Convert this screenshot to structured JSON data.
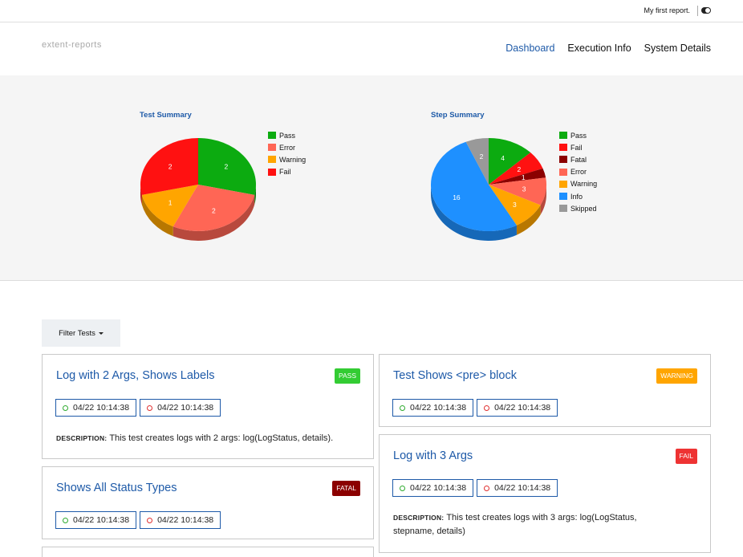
{
  "topbar": {
    "report_name": "My first report."
  },
  "navbar": {
    "brand": "extent-reports",
    "links": [
      "Dashboard",
      "Execution Info",
      "System Details"
    ]
  },
  "colors": {
    "accent": "#1e5aa8",
    "pass": "#0cab10",
    "error": "#ff6655",
    "warning": "#ffa500",
    "fail": "#ff1111",
    "fatal": "#8b0000",
    "info": "#1e90ff",
    "skipped": "#999999"
  },
  "chart_data": [
    {
      "type": "pie",
      "title": "Test Summary",
      "legend": [
        "Pass",
        "Error",
        "Warning",
        "Fail"
      ],
      "slices": [
        {
          "label": "Pass",
          "value": 2,
          "color": "#0cab10"
        },
        {
          "label": "Error",
          "value": 2,
          "color": "#ff6655"
        },
        {
          "label": "Warning",
          "value": 1,
          "color": "#ffa500"
        },
        {
          "label": "Fail",
          "value": 2,
          "color": "#ff1111"
        }
      ]
    },
    {
      "type": "pie",
      "title": "Step Summary",
      "legend": [
        "Pass",
        "Fail",
        "Fatal",
        "Error",
        "Warning",
        "Info",
        "Skipped"
      ],
      "slices": [
        {
          "label": "Pass",
          "value": 4,
          "color": "#0cab10"
        },
        {
          "label": "Fail",
          "value": 2,
          "color": "#ff1111"
        },
        {
          "label": "Fatal",
          "value": 1,
          "color": "#8b0000"
        },
        {
          "label": "Error",
          "value": 3,
          "color": "#ff6655"
        },
        {
          "label": "Warning",
          "value": 3,
          "color": "#ffa500"
        },
        {
          "label": "Info",
          "value": 16,
          "color": "#1e90ff"
        },
        {
          "label": "Skipped",
          "value": 2,
          "color": "#999999"
        }
      ]
    }
  ],
  "filter": {
    "label": "Filter Tests"
  },
  "tests": [
    {
      "title": "Log with 2 Args, Shows Labels",
      "status": "PASS",
      "start": "04/22 10:14:38",
      "end": "04/22 10:14:38",
      "description_label": "DESCRIPTION:",
      "description": "This test creates logs with 2 args: log(LogStatus, details)."
    },
    {
      "title": "Test Shows <pre> block",
      "status": "WARNING",
      "start": "04/22 10:14:38",
      "end": "04/22 10:14:38"
    },
    {
      "title": "Log with 3 Args",
      "status": "FAIL",
      "start": "04/22 10:14:38",
      "end": "04/22 10:14:38",
      "description_label": "DESCRIPTION:",
      "description": "This test creates logs with 3 args: log(LogStatus, stepname, details)"
    },
    {
      "title": "Shows All Status Types",
      "status": "FATAL",
      "start": "04/22 10:14:38",
      "end": "04/22 10:14:38"
    }
  ]
}
